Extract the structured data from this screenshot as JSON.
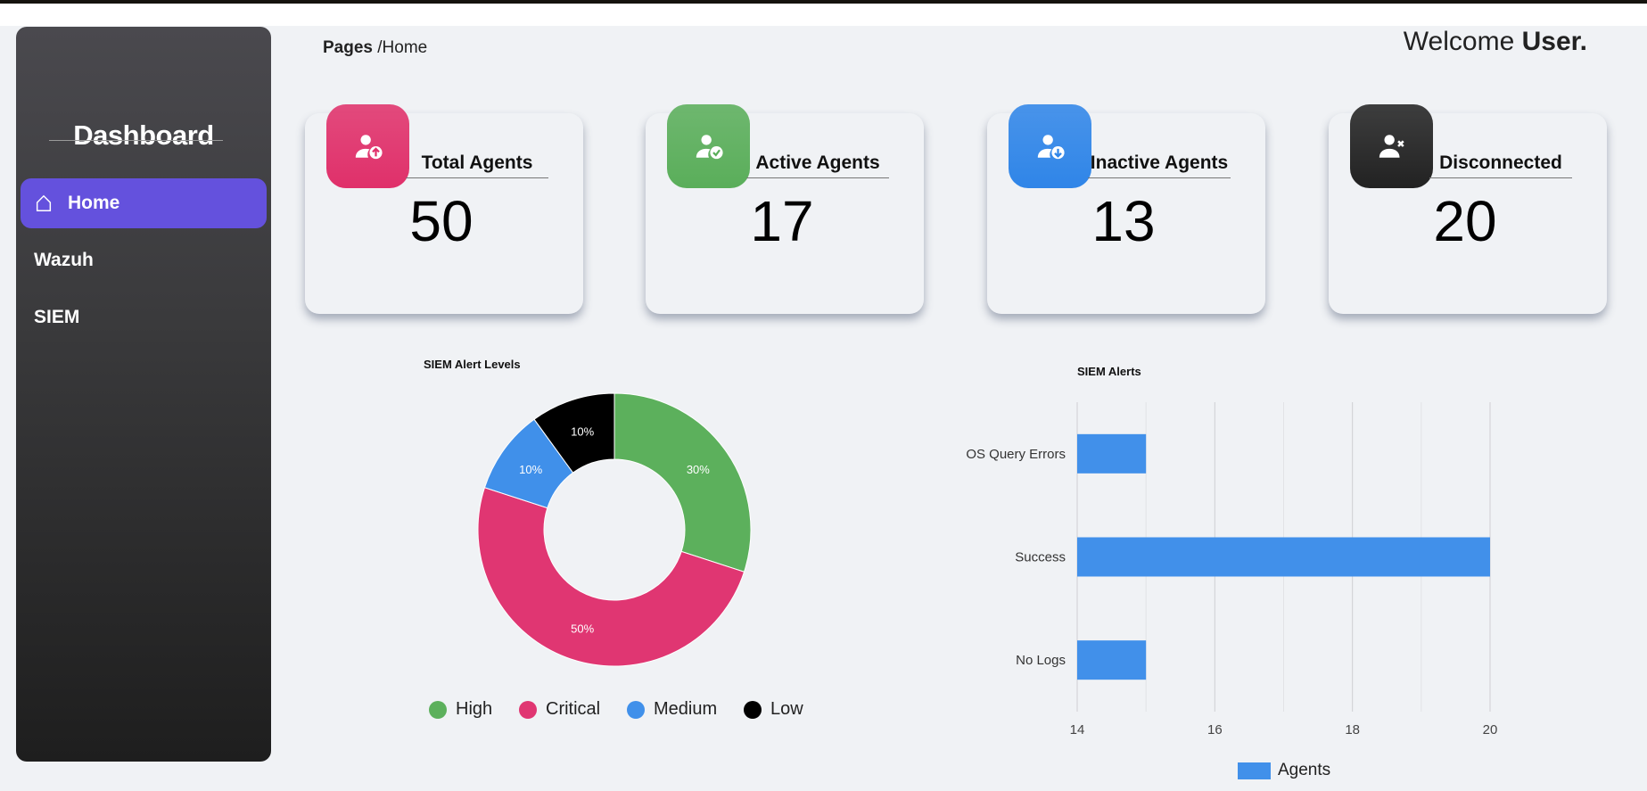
{
  "sidebar": {
    "title": "Dashboard",
    "items": [
      {
        "label": "Home",
        "icon": "home-icon",
        "active": true
      },
      {
        "label": "Wazuh"
      },
      {
        "label": "SIEM"
      }
    ]
  },
  "header": {
    "breadcrumb_root": "Pages",
    "breadcrumb_current": "/Home",
    "welcome_prefix": "Welcome ",
    "welcome_user": "User."
  },
  "cards": [
    {
      "title": "Total Agents",
      "value": "50",
      "icon": "user-upload-icon",
      "color": "#e0306a"
    },
    {
      "title": "Active Agents",
      "value": "17",
      "icon": "user-check-icon",
      "color": "#5aae5a"
    },
    {
      "title": "Inactive Agents",
      "value": "13",
      "icon": "user-download-icon",
      "color": "#2f85e8"
    },
    {
      "title": "Disconnected",
      "value": "20",
      "icon": "user-x-icon",
      "color": "#222222"
    }
  ],
  "chart_data": [
    {
      "type": "pie",
      "title": "SIEM Alert Levels",
      "donut": true,
      "legend": "bottom",
      "categories": [
        "High",
        "Critical",
        "Medium",
        "Low"
      ],
      "values": [
        30,
        50,
        10,
        10
      ],
      "labels": [
        "30%",
        "50%",
        "10%",
        "10%"
      ],
      "colors": [
        "#5cb05c",
        "#e03672",
        "#4090ea",
        "#000000"
      ]
    },
    {
      "type": "bar",
      "orientation": "horizontal",
      "title": "SIEM Alerts",
      "legend": "bottom",
      "categories": [
        "OS Query Errors",
        "Success",
        "No Logs"
      ],
      "series": [
        {
          "name": "Agents",
          "values": [
            15,
            20,
            15
          ],
          "color": "#4190ea"
        }
      ],
      "xlim": [
        14,
        20
      ],
      "xticks": [
        "14",
        "16",
        "18",
        "20"
      ],
      "grid": true
    }
  ]
}
